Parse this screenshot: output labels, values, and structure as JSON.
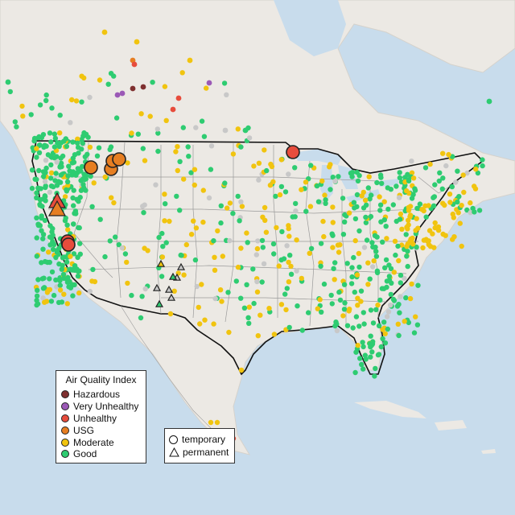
{
  "legend": {
    "title": "Air Quality Index",
    "categories": [
      {
        "label": "Hazardous",
        "color": "#7e2f2f"
      },
      {
        "label": "Very Unhealthy",
        "color": "#9b59b6"
      },
      {
        "label": "Unhealthy",
        "color": "#e74c3c"
      },
      {
        "label": "USG",
        "color": "#e67e22"
      },
      {
        "label": "Moderate",
        "color": "#f1c40f"
      },
      {
        "label": "Good",
        "color": "#2ecc71"
      }
    ]
  },
  "type_legend": {
    "temporary": "temporary",
    "permanent": "permanent"
  },
  "colors": {
    "water": "#c8dcec",
    "land": "#ece9e4",
    "no_data": "#c8c8c8"
  }
}
